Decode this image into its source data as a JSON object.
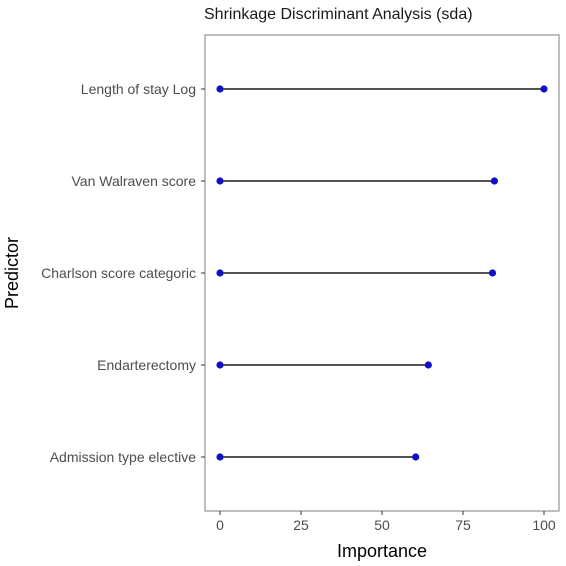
{
  "chart_data": {
    "type": "lollipop",
    "title": "Shrinkage Discriminant Analysis (sda)",
    "xlabel": "Importance",
    "ylabel": "Predictor",
    "xlim": [
      0,
      100
    ],
    "xticks": [
      0,
      25,
      50,
      75,
      100
    ],
    "grid": false,
    "categories": [
      "Length of stay Log",
      "Van Walraven score",
      "Charlson score categoric",
      "Endarterectomy",
      "Admission type elective"
    ],
    "series": [
      {
        "values": [
          100,
          84.7,
          84.1,
          64.3,
          60.4
        ],
        "start": 0
      }
    ],
    "colors": {
      "point": "#1010c8",
      "stem": "#1a1a1a",
      "border": "#7f7f7f"
    }
  }
}
